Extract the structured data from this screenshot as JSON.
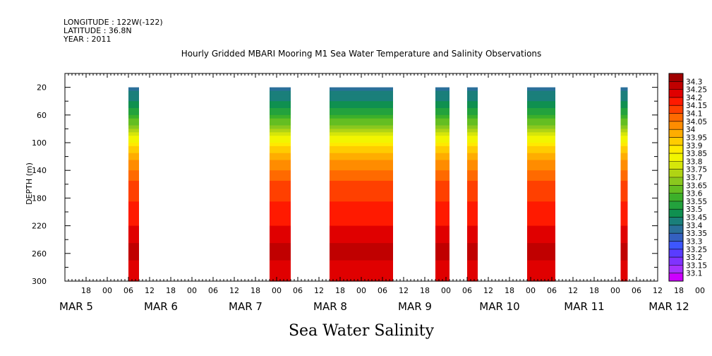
{
  "header": {
    "longitude": "LONGITUDE : 122W(-122)",
    "latitude": "LATITUDE : 36.8N",
    "year": "YEAR : 2011"
  },
  "chart_data": {
    "type": "heatmap",
    "title": "Hourly Gridded MBARI Mooring M1 Sea Water Temperature and Salinity Observations",
    "xlabel": "Sea Water Salinity",
    "ylabel": "DEPTH (m)",
    "ylim": [
      300,
      0
    ],
    "y_ticks": [
      20,
      60,
      100,
      140,
      180,
      220,
      260,
      300
    ],
    "x_time_range_hours": [
      0,
      168
    ],
    "x_tick_labels": [
      "18",
      "00",
      "06",
      "12",
      "18",
      "00",
      "06",
      "12",
      "18",
      "00",
      "06",
      "12",
      "18",
      "00",
      "06",
      "12",
      "18",
      "00",
      "06",
      "12",
      "18",
      "00",
      "06",
      "12",
      "18",
      "00",
      "06",
      "12",
      "18",
      "00",
      "06",
      "12"
    ],
    "x_day_labels": [
      "MAR 5",
      "MAR 6",
      "MAR 7",
      "MAR 8",
      "MAR 9",
      "MAR 10",
      "MAR 11",
      "MAR 12"
    ],
    "data_segments_hours": [
      [
        18.0,
        21.0
      ],
      [
        58.0,
        64.0
      ],
      [
        75.0,
        93.0
      ],
      [
        105.0,
        109.0
      ],
      [
        114.0,
        117.0
      ],
      [
        131.0,
        139.0
      ],
      [
        157.5,
        159.5
      ]
    ],
    "colorbar": {
      "levels": [
        33.1,
        33.15,
        33.2,
        33.25,
        33.3,
        33.35,
        33.4,
        33.45,
        33.5,
        33.55,
        33.6,
        33.65,
        33.7,
        33.75,
        33.8,
        33.85,
        33.9,
        33.95,
        34,
        34.05,
        34.1,
        34.15,
        34.2,
        34.25,
        34.3
      ],
      "colors": [
        "#cc00ff",
        "#a633ff",
        "#8033ff",
        "#5a3cff",
        "#3d56ff",
        "#3460c0",
        "#2a6f9a",
        "#1a7f7a",
        "#0f9050",
        "#23a23d",
        "#3cb02a",
        "#64be22",
        "#8ac81e",
        "#b0d414",
        "#d6e60a",
        "#f2f500",
        "#ffea00",
        "#ffcc00",
        "#ffad00",
        "#ff8c00",
        "#ff6a00",
        "#ff4000",
        "#ff1a00",
        "#e00000",
        "#c00000",
        "#a00000"
      ]
    },
    "depth_profile": [
      {
        "depth": 20,
        "salinity": 33.38
      },
      {
        "depth": 40,
        "salinity": 33.45
      },
      {
        "depth": 60,
        "salinity": 33.55
      },
      {
        "depth": 80,
        "salinity": 33.7
      },
      {
        "depth": 100,
        "salinity": 33.86
      },
      {
        "depth": 120,
        "salinity": 33.97
      },
      {
        "depth": 140,
        "salinity": 34.05
      },
      {
        "depth": 160,
        "salinity": 34.11
      },
      {
        "depth": 180,
        "salinity": 34.14
      },
      {
        "depth": 200,
        "salinity": 34.17
      },
      {
        "depth": 220,
        "salinity": 34.2
      },
      {
        "depth": 240,
        "salinity": 34.24
      },
      {
        "depth": 260,
        "salinity": 34.27
      },
      {
        "depth": 280,
        "salinity": 34.23
      },
      {
        "depth": 300,
        "salinity": 34.2
      }
    ]
  }
}
